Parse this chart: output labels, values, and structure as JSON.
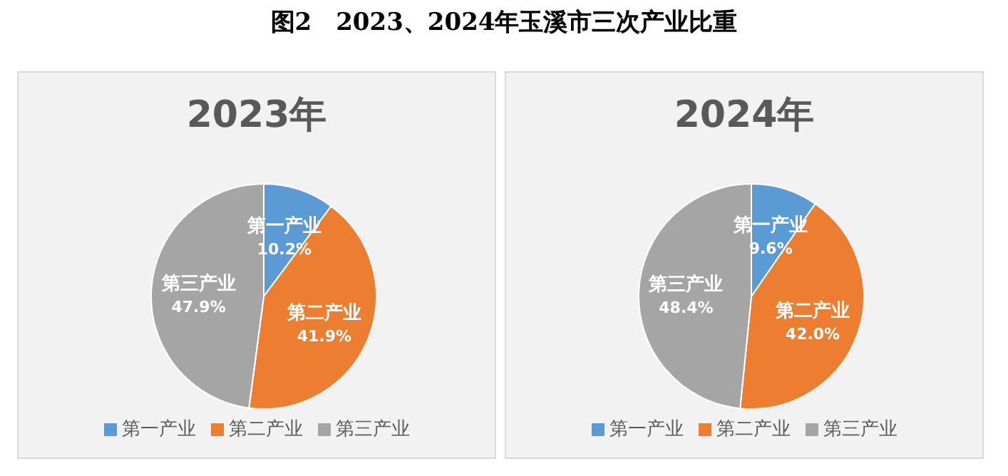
{
  "chart_data": [
    {
      "type": "pie",
      "title": "2023年",
      "annotations": [
        "图2　2023、2024年玉溪市三次产业比重"
      ],
      "categories": [
        "第一产业",
        "第二产业",
        "第三产业"
      ],
      "values": [
        10.2,
        41.9,
        47.9
      ],
      "value_labels": [
        "10.2%",
        "41.9%",
        "47.9%"
      ],
      "colors": [
        "#5b9bd5",
        "#ed7d31",
        "#a5a5a5"
      ],
      "legend": "bottom"
    },
    {
      "type": "pie",
      "title": "2024年",
      "categories": [
        "第一产业",
        "第二产业",
        "第三产业"
      ],
      "values": [
        9.6,
        42.0,
        48.4
      ],
      "value_labels": [
        "9.6%",
        "42.0%",
        "48.4%"
      ],
      "colors": [
        "#5b9bd5",
        "#ed7d31",
        "#a5a5a5"
      ],
      "legend": "bottom"
    }
  ]
}
